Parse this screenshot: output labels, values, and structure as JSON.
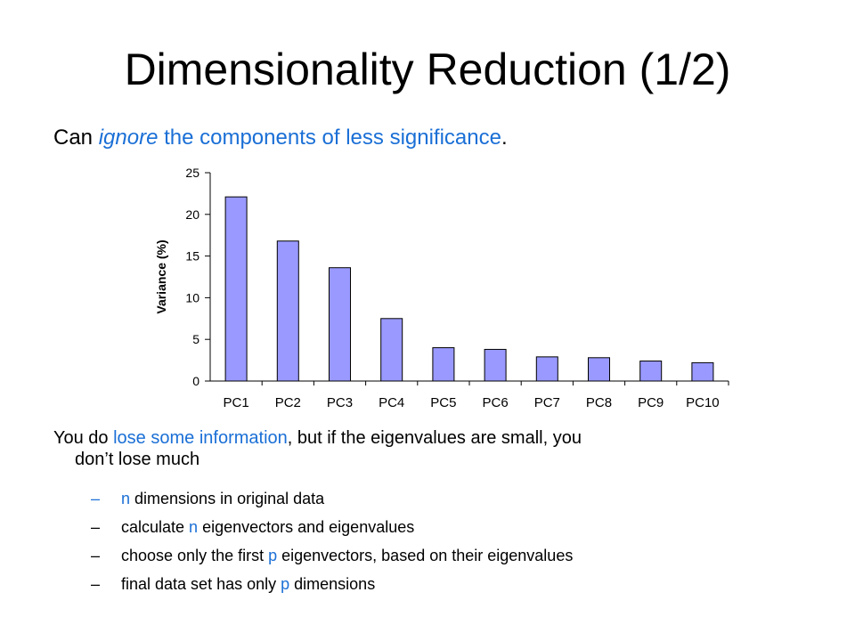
{
  "slide": {
    "title": "Dimensionality Reduction (1/2)",
    "subtitle": {
      "p1": "Can ",
      "p2": "ignore",
      "p3": " the components of less significance",
      "p4": "."
    },
    "main_bullet": {
      "p1": "You do ",
      "p2": "lose some information",
      "p3": ", but if the eigenvalues are small, you",
      "p4": "don’t lose much"
    },
    "sub_bullets": [
      {
        "dash": "–",
        "a": "n",
        "b": " dimensions in original data"
      },
      {
        "dash": "–",
        "a": "calculate ",
        "b": "n",
        "c": " eigenvectors and eigenvalues"
      },
      {
        "dash": "–",
        "a": "choose only the first ",
        "b": "p",
        "c": " eigenvectors, based on their eigenvalues"
      },
      {
        "dash": "–",
        "a": "final data set has only ",
        "b": "p",
        "c": " dimensions"
      }
    ]
  },
  "colors": {
    "accent_blue": "#1a6fd6",
    "bar_fill": "#9999ff",
    "bar_stroke": "#000000"
  },
  "chart_data": {
    "type": "bar",
    "categories": [
      "PC1",
      "PC2",
      "PC3",
      "PC4",
      "PC5",
      "PC6",
      "PC7",
      "PC8",
      "PC9",
      "PC10"
    ],
    "values": [
      22.1,
      16.8,
      13.6,
      7.5,
      4.0,
      3.8,
      2.9,
      2.8,
      2.4,
      2.2
    ],
    "ylabel": "Variance (%)",
    "xlabel": "",
    "ylim": [
      0,
      25
    ],
    "yticks": [
      0,
      5,
      10,
      15,
      20,
      25
    ],
    "grid": false,
    "legend": "none"
  }
}
